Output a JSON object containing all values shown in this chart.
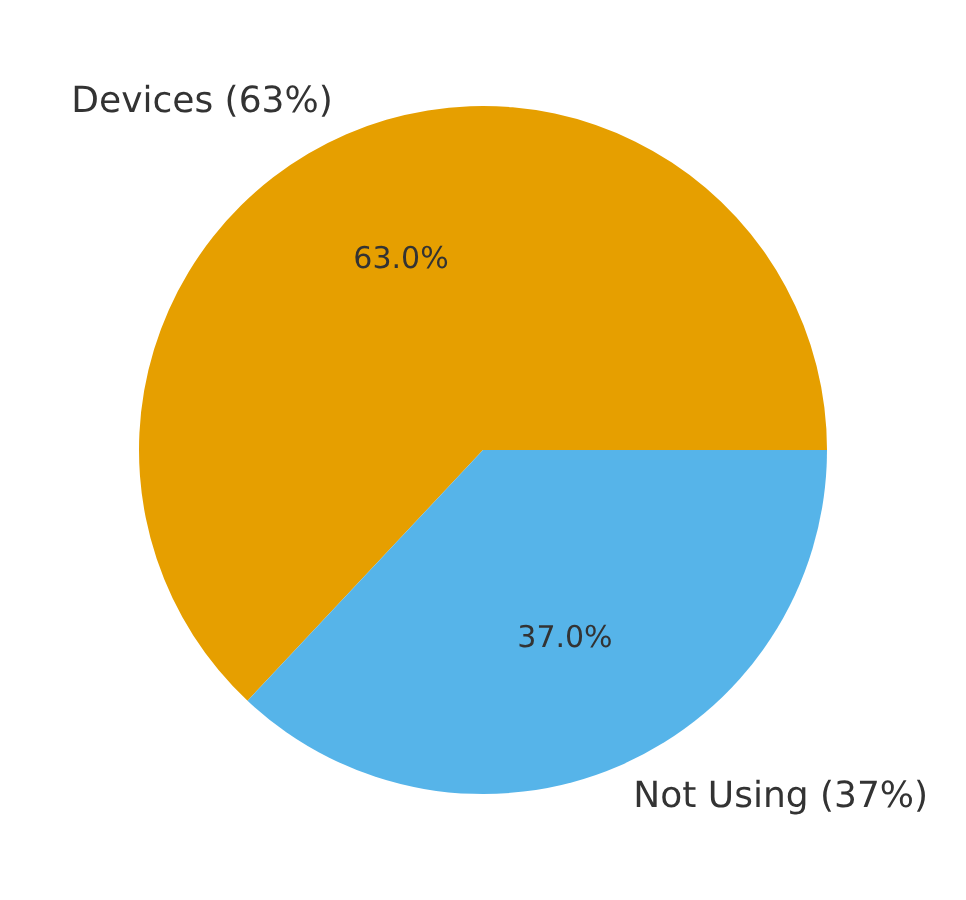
{
  "chart_data": {
    "type": "pie",
    "categories": [
      "Devices (63%)",
      "Not Using (37%)"
    ],
    "values": [
      63,
      37
    ],
    "colors": [
      "#e69f00",
      "#56b4e9"
    ],
    "value_labels": [
      "63.0%",
      "37.0%"
    ],
    "legend": false
  }
}
